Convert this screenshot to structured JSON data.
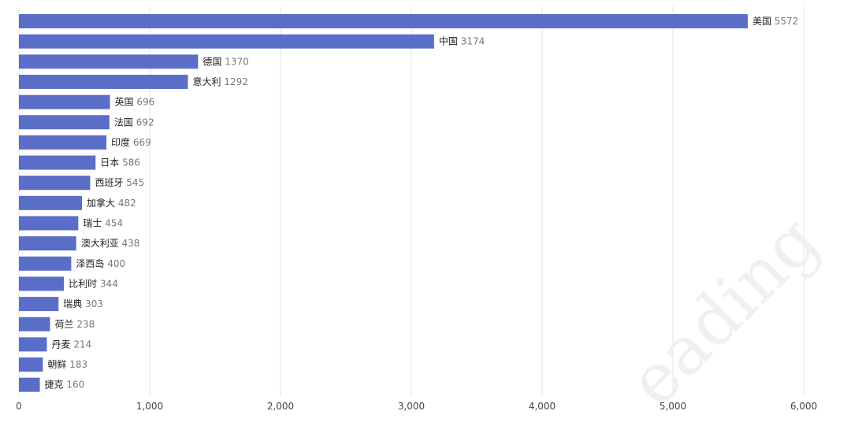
{
  "chart_data": {
    "type": "bar",
    "orientation": "horizontal",
    "categories": [
      "美国",
      "中国",
      "德国",
      "意大利",
      "英国",
      "法国",
      "印度",
      "日本",
      "西班牙",
      "加拿大",
      "瑞士",
      "澳大利亚",
      "泽西岛",
      "比利时",
      "瑞典",
      "荷兰",
      "丹麦",
      "朝鲜",
      "捷克"
    ],
    "values": [
      5572,
      3174,
      1370,
      1292,
      696,
      692,
      669,
      586,
      545,
      482,
      454,
      438,
      400,
      344,
      303,
      238,
      214,
      183,
      160
    ],
    "x_ticks": [
      "0",
      "1,000",
      "2,000",
      "3,000",
      "4,000",
      "5,000",
      "6,000"
    ],
    "xlim": [
      0,
      6000
    ],
    "grid": true,
    "bar_color": "#5b6ec7",
    "watermark": "eading"
  }
}
